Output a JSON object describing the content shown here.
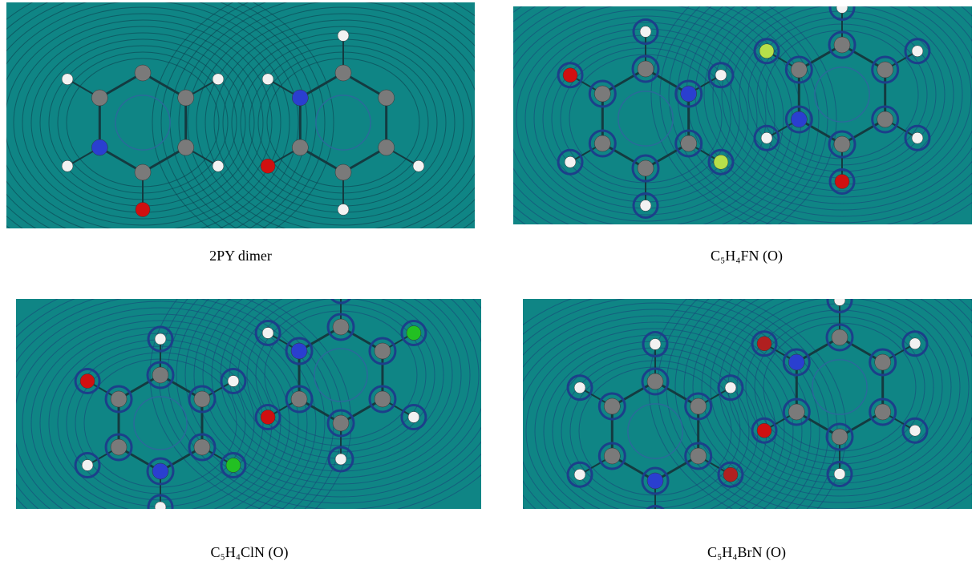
{
  "figure": {
    "panels": [
      {
        "caption": "2PY dimer"
      },
      {
        "caption": "C₅H₄FN (O)"
      },
      {
        "caption": "C₅H₄ClN (O)"
      },
      {
        "caption": "C₅H₄BrN (O)"
      }
    ]
  }
}
